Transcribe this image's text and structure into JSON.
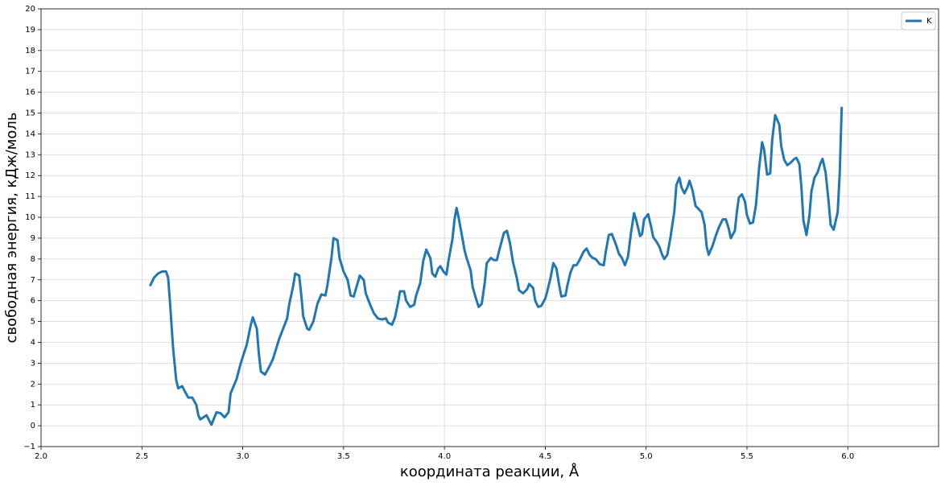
{
  "chart_data": {
    "type": "line",
    "xlabel": "координата реакции, Å",
    "ylabel": "свободная энергия, кДж/моль",
    "xlim": [
      2.0,
      6.45
    ],
    "ylim": [
      -1,
      20
    ],
    "xticks": [
      {
        "value": 2.0,
        "label": "2.0"
      },
      {
        "value": 2.5,
        "label": "2.5"
      },
      {
        "value": 3.0,
        "label": "3.0"
      },
      {
        "value": 3.5,
        "label": "3.5"
      },
      {
        "value": 4.0,
        "label": "4.0"
      },
      {
        "value": 4.5,
        "label": "4.5"
      },
      {
        "value": 5.0,
        "label": "5.0"
      },
      {
        "value": 5.5,
        "label": "5.5"
      },
      {
        "value": 6.0,
        "label": "6.0"
      }
    ],
    "yticks": [
      {
        "value": -1,
        "label": "−1"
      },
      0,
      1,
      2,
      3,
      4,
      5,
      6,
      7,
      8,
      9,
      10,
      11,
      12,
      13,
      14,
      15,
      16,
      17,
      18,
      19,
      20
    ],
    "grid": true,
    "legend": "upper right",
    "x": [
      2.54,
      2.56,
      2.58,
      2.6,
      2.62,
      2.63,
      2.64,
      2.655,
      2.67,
      2.68,
      2.7,
      2.71,
      2.73,
      2.75,
      2.77,
      2.78,
      2.79,
      2.82,
      2.845,
      2.87,
      2.89,
      2.91,
      2.93,
      2.94,
      2.97,
      2.99,
      3.02,
      3.04,
      3.05,
      3.07,
      3.08,
      3.09,
      3.11,
      3.13,
      3.15,
      3.18,
      3.2,
      3.22,
      3.23,
      3.25,
      3.26,
      3.28,
      3.29,
      3.3,
      3.32,
      3.33,
      3.35,
      3.37,
      3.39,
      3.41,
      3.42,
      3.44,
      3.45,
      3.47,
      3.48,
      3.5,
      3.52,
      3.535,
      3.55,
      3.57,
      3.58,
      3.6,
      3.61,
      3.63,
      3.65,
      3.67,
      3.69,
      3.71,
      3.72,
      3.74,
      3.755,
      3.77,
      3.78,
      3.8,
      3.81,
      3.83,
      3.85,
      3.86,
      3.88,
      3.895,
      3.91,
      3.93,
      3.94,
      3.955,
      3.97,
      3.98,
      3.995,
      4.01,
      4.02,
      4.04,
      4.05,
      4.06,
      4.07,
      4.09,
      4.1,
      4.11,
      4.13,
      4.14,
      4.155,
      4.17,
      4.185,
      4.2,
      4.21,
      4.23,
      4.245,
      4.26,
      4.27,
      4.295,
      4.31,
      4.325,
      4.34,
      4.36,
      4.37,
      4.39,
      4.41,
      4.42,
      4.44,
      4.45,
      4.465,
      4.48,
      4.5,
      4.51,
      4.525,
      4.54,
      4.555,
      4.57,
      4.58,
      4.6,
      4.61,
      4.625,
      4.64,
      4.655,
      4.67,
      4.69,
      4.705,
      4.72,
      4.735,
      4.75,
      4.77,
      4.79,
      4.8,
      4.815,
      4.83,
      4.85,
      4.865,
      4.88,
      4.895,
      4.91,
      4.925,
      4.94,
      4.95,
      4.97,
      4.98,
      4.99,
      5.01,
      5.025,
      5.035,
      5.05,
      5.065,
      5.08,
      5.09,
      5.105,
      5.12,
      5.14,
      5.15,
      5.165,
      5.175,
      5.19,
      5.205,
      5.215,
      5.23,
      5.245,
      5.26,
      5.275,
      5.29,
      5.3,
      5.31,
      5.33,
      5.345,
      5.36,
      5.38,
      5.395,
      5.41,
      5.42,
      5.44,
      5.45,
      5.46,
      5.475,
      5.49,
      5.5,
      5.515,
      5.53,
      5.545,
      5.56,
      5.575,
      5.585,
      5.6,
      5.615,
      5.625,
      5.64,
      5.66,
      5.67,
      5.685,
      5.7,
      5.72,
      5.735,
      5.745,
      5.76,
      5.77,
      5.78,
      5.795,
      5.81,
      5.82,
      5.835,
      5.85,
      5.865,
      5.875,
      5.89,
      5.905,
      5.915,
      5.93,
      5.95,
      5.96,
      5.97
    ],
    "series": [
      {
        "name": "K",
        "color": "#1f77b4",
        "values": [
          6.7,
          7.1,
          7.3,
          7.4,
          7.4,
          7.1,
          5.8,
          3.7,
          2.2,
          1.8,
          1.9,
          1.7,
          1.35,
          1.35,
          1.0,
          0.5,
          0.3,
          0.5,
          0.05,
          0.65,
          0.6,
          0.4,
          0.65,
          1.55,
          2.25,
          3.0,
          3.9,
          4.85,
          5.2,
          4.65,
          3.45,
          2.6,
          2.45,
          2.8,
          3.2,
          4.15,
          4.65,
          5.15,
          5.8,
          6.7,
          7.3,
          7.2,
          6.3,
          5.25,
          4.65,
          4.6,
          5.0,
          5.85,
          6.3,
          6.25,
          6.75,
          8.05,
          9.0,
          8.9,
          8.05,
          7.4,
          7.0,
          6.25,
          6.2,
          6.85,
          7.2,
          7.0,
          6.35,
          5.85,
          5.4,
          5.15,
          5.1,
          5.15,
          4.95,
          4.85,
          5.2,
          5.9,
          6.45,
          6.45,
          6.0,
          5.7,
          5.8,
          6.25,
          6.85,
          7.9,
          8.45,
          8.05,
          7.3,
          7.15,
          7.55,
          7.65,
          7.4,
          7.25,
          7.9,
          8.95,
          9.9,
          10.45,
          10.0,
          8.95,
          8.4,
          8.05,
          7.45,
          6.65,
          6.15,
          5.7,
          5.85,
          6.85,
          7.8,
          8.05,
          7.95,
          7.95,
          8.35,
          9.25,
          9.35,
          8.75,
          7.85,
          7.05,
          6.5,
          6.35,
          6.55,
          6.8,
          6.6,
          6.0,
          5.7,
          5.75,
          6.1,
          6.45,
          7.05,
          7.8,
          7.55,
          6.7,
          6.2,
          6.25,
          6.75,
          7.35,
          7.7,
          7.7,
          7.95,
          8.35,
          8.5,
          8.2,
          8.05,
          8.0,
          7.75,
          7.7,
          8.35,
          9.15,
          9.2,
          8.7,
          8.25,
          8.05,
          7.7,
          8.1,
          9.25,
          10.2,
          9.9,
          9.1,
          9.2,
          9.9,
          10.15,
          9.55,
          9.05,
          8.85,
          8.6,
          8.2,
          8.0,
          8.2,
          9.0,
          10.3,
          11.55,
          11.9,
          11.45,
          11.15,
          11.45,
          11.75,
          11.3,
          10.55,
          10.4,
          10.25,
          9.65,
          8.6,
          8.2,
          8.65,
          9.1,
          9.5,
          9.9,
          9.9,
          9.45,
          9.0,
          9.35,
          10.25,
          10.95,
          11.1,
          10.75,
          10.1,
          9.7,
          9.75,
          10.6,
          12.35,
          13.6,
          13.25,
          12.05,
          12.1,
          13.7,
          14.9,
          14.45,
          13.4,
          12.75,
          12.5,
          12.65,
          12.8,
          12.85,
          12.55,
          11.45,
          9.85,
          9.15,
          10.1,
          11.25,
          11.9,
          12.15,
          12.6,
          12.8,
          12.15,
          10.75,
          9.65,
          9.4,
          10.25,
          12.1,
          15.3
        ]
      }
    ]
  }
}
